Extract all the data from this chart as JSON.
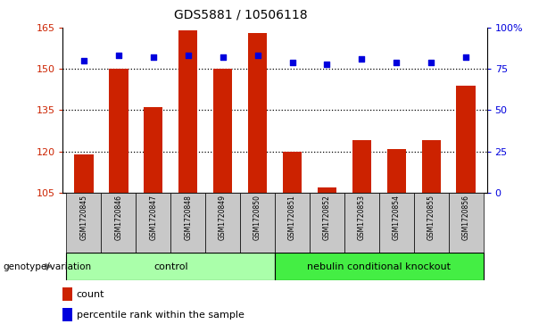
{
  "title": "GDS5881 / 10506118",
  "samples": [
    "GSM1720845",
    "GSM1720846",
    "GSM1720847",
    "GSM1720848",
    "GSM1720849",
    "GSM1720850",
    "GSM1720851",
    "GSM1720852",
    "GSM1720853",
    "GSM1720854",
    "GSM1720855",
    "GSM1720856"
  ],
  "counts": [
    119,
    150,
    136,
    164,
    150,
    163,
    120,
    107,
    124,
    121,
    124,
    144
  ],
  "percentile_ranks": [
    80,
    83,
    82,
    83,
    82,
    83,
    79,
    78,
    81,
    79,
    79,
    82
  ],
  "ylim_left": [
    105,
    165
  ],
  "ylim_right": [
    0,
    100
  ],
  "yticks_left": [
    105,
    120,
    135,
    150,
    165
  ],
  "yticks_right": [
    0,
    25,
    50,
    75,
    100
  ],
  "ytick_labels_right": [
    "0",
    "25",
    "50",
    "75",
    "100%"
  ],
  "bar_color": "#CC2200",
  "dot_color": "#0000DD",
  "bar_bottom": 105,
  "groups": [
    {
      "label": "control",
      "start": 0,
      "end": 5,
      "color": "#AAFFAA"
    },
    {
      "label": "nebulin conditional knockout",
      "start": 6,
      "end": 11,
      "color": "#44EE44"
    }
  ],
  "group_label_y": "genotype/variation",
  "legend_count_label": "count",
  "legend_pct_label": "percentile rank within the sample",
  "xlabel_color": "#CC2200",
  "ylabel_right_color": "#0000DD",
  "grid_dotted_values": [
    120,
    135,
    150
  ],
  "tick_bg_color": "#C8C8C8",
  "plot_bg_color": "#FFFFFF"
}
